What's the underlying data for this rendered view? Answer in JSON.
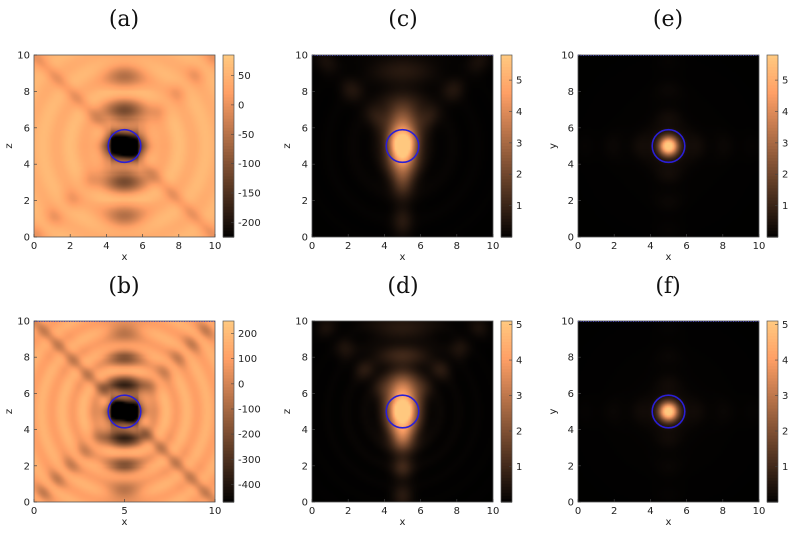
{
  "chart_data": [
    {
      "type": "heatmap",
      "panel": "(a)",
      "colormap": "copper",
      "smoothing": 2.2,
      "xlabel": "x",
      "ylabel": "z",
      "xlim": [
        0,
        10
      ],
      "ylim": [
        0,
        10
      ],
      "xticks": [
        "0",
        "2",
        "4",
        "6",
        "8",
        "10"
      ],
      "yticks": [
        "0",
        "2",
        "4",
        "6",
        "8",
        "10"
      ],
      "clim": [
        -225,
        85
      ],
      "colorbar_ticks": [
        {
          "v": 50,
          "label": "50"
        },
        {
          "v": 0,
          "label": "0"
        },
        {
          "v": -50,
          "label": "-50"
        },
        {
          "v": -100,
          "label": "-100"
        },
        {
          "v": -150,
          "label": "-150"
        },
        {
          "v": -200,
          "label": "-200"
        }
      ],
      "circle": {
        "x": 5,
        "y": 5,
        "r": 0.45
      },
      "field": {
        "kind": "side",
        "base": 0.9,
        "dip": 1.05,
        "decayY": 0.32,
        "decayX": 0.55,
        "ripple": 0.07,
        "x_arms": 0.14,
        "k": 3.2
      },
      "dotted_top": false
    },
    {
      "type": "heatmap",
      "panel": "(b)",
      "colormap": "copper",
      "smoothing": 2.2,
      "xlabel": "x",
      "ylabel": "z",
      "xlim": [
        0,
        10
      ],
      "ylim": [
        0,
        10
      ],
      "xticks": [
        "0",
        "5",
        "10"
      ],
      "yticks": [
        "0",
        "2",
        "4",
        "6",
        "8",
        "10"
      ],
      "clim": [
        -470,
        250
      ],
      "colorbar_ticks": [
        {
          "v": 200,
          "label": "200"
        },
        {
          "v": 100,
          "label": "100"
        },
        {
          "v": 0,
          "label": "0"
        },
        {
          "v": -100,
          "label": "-100"
        },
        {
          "v": -200,
          "label": "-200"
        },
        {
          "v": -300,
          "label": "-300"
        },
        {
          "v": -400,
          "label": "-400"
        }
      ],
      "circle": {
        "x": 5,
        "y": 5,
        "r": 0.45
      },
      "field": {
        "kind": "side",
        "base": 0.85,
        "dip": 1.0,
        "decayY": 0.28,
        "decayX": 0.5,
        "ripple": 0.1,
        "x_arms": 0.2,
        "k": 4.2
      },
      "dotted_top": true
    },
    {
      "type": "heatmap",
      "panel": "(c)",
      "colormap": "copper",
      "smoothing": 2.2,
      "xlabel": "x",
      "ylabel": "z",
      "xlim": [
        0,
        10
      ],
      "ylim": [
        0,
        10
      ],
      "xticks": [
        "0",
        "2",
        "4",
        "6",
        "8",
        "10"
      ],
      "yticks": [
        "0",
        "2",
        "4",
        "6",
        "8",
        "10"
      ],
      "clim": [
        0,
        5.8
      ],
      "colorbar_ticks": [
        {
          "v": 5,
          "label": "5"
        },
        {
          "v": 4,
          "label": "4"
        },
        {
          "v": 3,
          "label": "3"
        },
        {
          "v": 2,
          "label": "2"
        },
        {
          "v": 1,
          "label": "1"
        }
      ],
      "circle": {
        "x": 5,
        "y": 5,
        "r": 0.45
      },
      "field": {
        "kind": "cone",
        "peak": 5.5,
        "decay": 0.22,
        "arms": 0.9,
        "k": 3.0
      },
      "dotted_top": true
    },
    {
      "type": "heatmap",
      "panel": "(d)",
      "colormap": "copper",
      "smoothing": 2.2,
      "xlabel": "x",
      "ylabel": "z",
      "xlim": [
        0,
        10
      ],
      "ylim": [
        0,
        10
      ],
      "xticks": [
        "0",
        "2",
        "4",
        "6",
        "8",
        "10"
      ],
      "yticks": [
        "0",
        "2",
        "4",
        "6",
        "8",
        "10"
      ],
      "clim": [
        0,
        5.1
      ],
      "colorbar_ticks": [
        {
          "v": 5,
          "label": "5"
        },
        {
          "v": 4,
          "label": "4"
        },
        {
          "v": 3,
          "label": "3"
        },
        {
          "v": 2,
          "label": "2"
        },
        {
          "v": 1,
          "label": "1"
        }
      ],
      "circle": {
        "x": 5,
        "y": 5,
        "r": 0.45
      },
      "field": {
        "kind": "cone",
        "peak": 5.0,
        "decay": 0.2,
        "arms": 0.8,
        "k": 4.0
      },
      "dotted_top": false
    },
    {
      "type": "heatmap",
      "panel": "(e)",
      "colormap": "copper",
      "smoothing": 2.2,
      "xlabel": "x",
      "ylabel": "y",
      "xlim": [
        0,
        10
      ],
      "ylim": [
        0,
        10
      ],
      "xticks": [
        "0",
        "2",
        "4",
        "6",
        "8",
        "10"
      ],
      "yticks": [
        "0",
        "2",
        "4",
        "6",
        "8",
        "10"
      ],
      "clim": [
        0,
        5.8
      ],
      "colorbar_ticks": [
        {
          "v": 5,
          "label": "5"
        },
        {
          "v": 4,
          "label": "4"
        },
        {
          "v": 3,
          "label": "3"
        },
        {
          "v": 2,
          "label": "2"
        },
        {
          "v": 1,
          "label": "1"
        }
      ],
      "circle": {
        "x": 5,
        "y": 5,
        "r": 0.45
      },
      "field": {
        "kind": "cross",
        "peak": 5.6,
        "spot": 0.35,
        "arm": 0.5,
        "armw": 0.6
      },
      "dotted_top": true
    },
    {
      "type": "heatmap",
      "panel": "(f)",
      "colormap": "copper",
      "smoothing": 2.2,
      "xlabel": "x",
      "ylabel": "y",
      "xlim": [
        0,
        10
      ],
      "ylim": [
        0,
        10
      ],
      "xticks": [
        "0",
        "2",
        "4",
        "6",
        "8",
        "10"
      ],
      "yticks": [
        "0",
        "2",
        "4",
        "6",
        "8",
        "10"
      ],
      "clim": [
        0,
        5.1
      ],
      "colorbar_ticks": [
        {
          "v": 5,
          "label": "5"
        },
        {
          "v": 4,
          "label": "4"
        },
        {
          "v": 3,
          "label": "3"
        },
        {
          "v": 2,
          "label": "2"
        },
        {
          "v": 1,
          "label": "1"
        }
      ],
      "circle": {
        "x": 5,
        "y": 5,
        "r": 0.45
      },
      "field": {
        "kind": "cross",
        "peak": 5.0,
        "spot": 0.35,
        "arm": 0.35,
        "armw": 0.55
      },
      "dotted_top": true
    }
  ]
}
